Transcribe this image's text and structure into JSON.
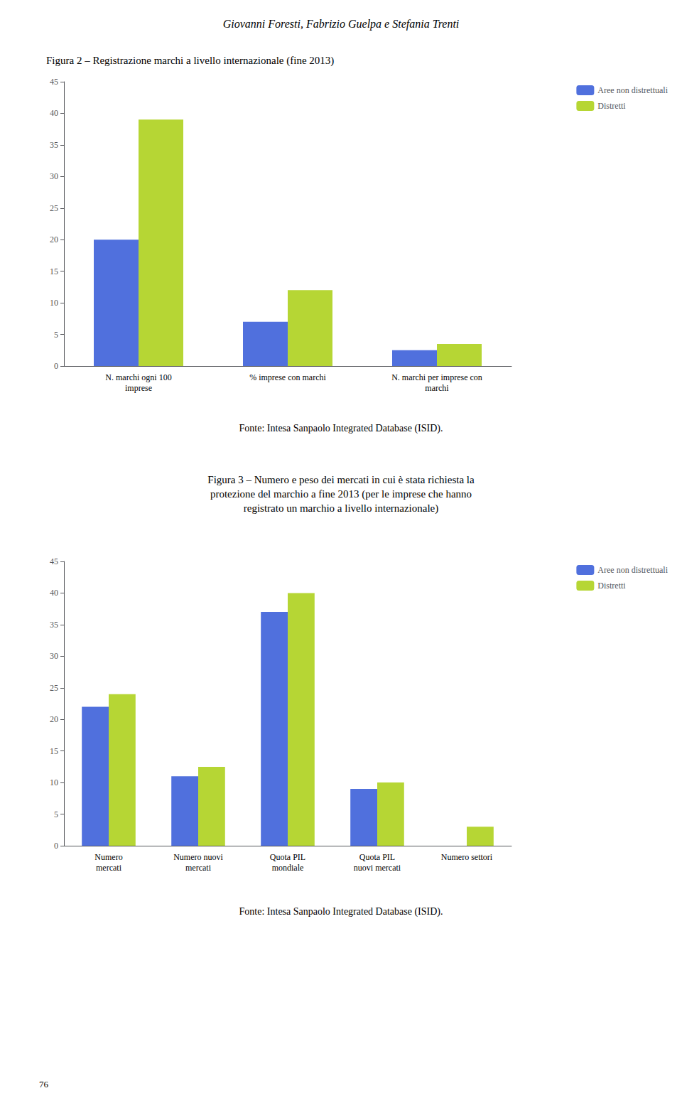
{
  "header": "Giovanni Foresti, Fabrizio Guelpa e Stefania Trenti",
  "page_number": "76",
  "chart_data": [
    {
      "type": "bar",
      "title": "Figura 2 – Registrazione marchi a livello internazionale (fine 2013)",
      "annotations": [
        "Fonte: Intesa Sanpaolo Integrated Database (ISID)."
      ],
      "categories": [
        "N. marchi ogni 100\nimprese",
        "% imprese con marchi",
        "N. marchi per imprese con\nmarchi"
      ],
      "series": [
        {
          "name": "Aree non distrettuali",
          "values": [
            20,
            7,
            2.5
          ]
        },
        {
          "name": "Distretti",
          "values": [
            39,
            12,
            3.5
          ]
        }
      ],
      "ylim": [
        0,
        45
      ],
      "yticks": [
        0,
        5,
        10,
        15,
        20,
        25,
        30,
        35,
        40,
        45
      ],
      "grid": false,
      "legend": "right"
    },
    {
      "type": "bar",
      "title": "Figura 3 – Numero e peso dei mercati in cui è stata richiesta la\nprotezione del marchio a fine 2013 (per le imprese che hanno\nregistrato un marchio a livello internazionale)",
      "annotations": [
        "Fonte: Intesa Sanpaolo Integrated Database (ISID)."
      ],
      "categories": [
        "Numero\nmercati",
        "Numero nuovi\nmercati",
        "Quota PIL\nmondiale",
        "Quota PIL\nnuovi mercati",
        "Numero settori"
      ],
      "series": [
        {
          "name": "Aree non distrettuali",
          "values": [
            22,
            11,
            37,
            9,
            0
          ]
        },
        {
          "name": "Distretti",
          "values": [
            24,
            12.5,
            40,
            10,
            3
          ]
        }
      ],
      "ylim": [
        0,
        45
      ],
      "yticks": [
        0,
        5,
        10,
        15,
        20,
        25,
        30,
        35,
        40,
        45
      ],
      "grid": false,
      "legend": "right"
    }
  ]
}
